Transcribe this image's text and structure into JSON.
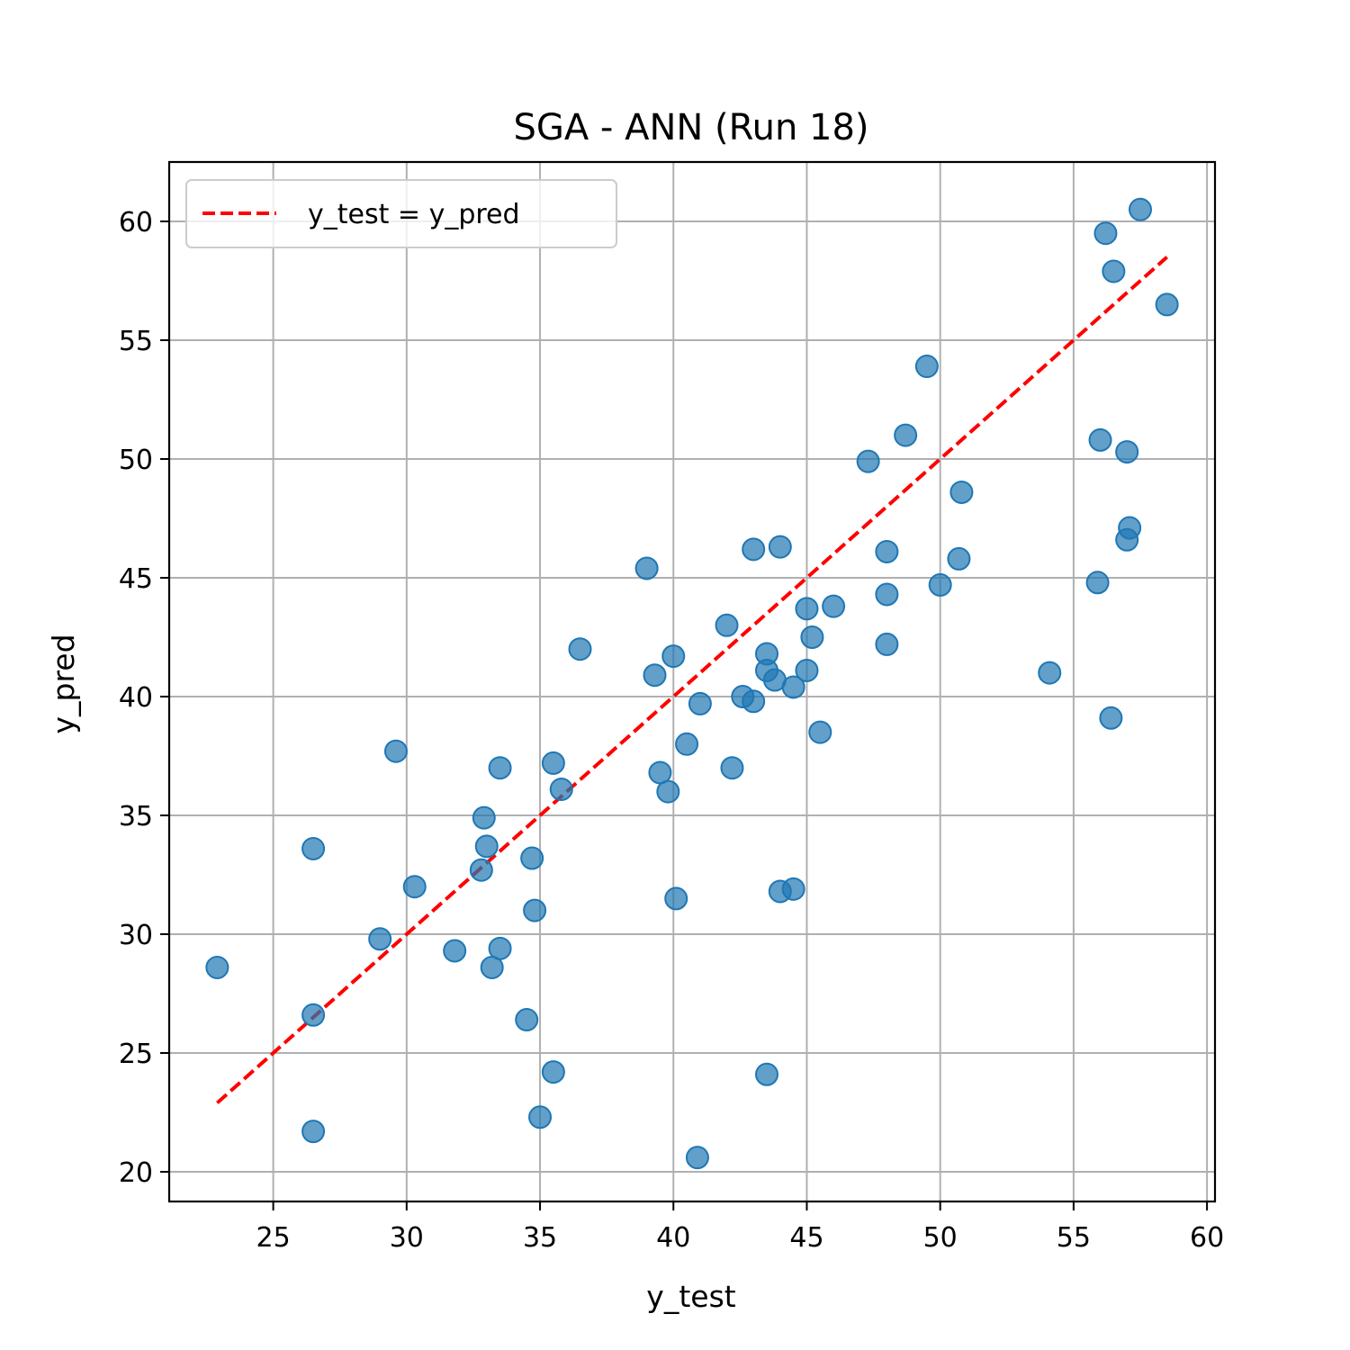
{
  "chart_data": {
    "type": "scatter",
    "title": "SGA - ANN (Run 18)",
    "xlabel": "y_test",
    "ylabel": "y_pred",
    "xlim": [
      21.1,
      60.3
    ],
    "ylim": [
      18.75,
      62.5
    ],
    "xticks": [
      25,
      30,
      35,
      40,
      45,
      50,
      55,
      60
    ],
    "yticks": [
      20,
      25,
      30,
      35,
      40,
      45,
      50,
      55,
      60
    ],
    "grid": true,
    "legend_position": "upper-left",
    "colors": {
      "points": "#1f77b4",
      "reference_line": "#ff0000"
    },
    "reference_line": {
      "name": "y_test = y_pred",
      "x": [
        22.9,
        58.5
      ],
      "y": [
        22.9,
        58.5
      ]
    },
    "points": [
      [
        22.9,
        28.6
      ],
      [
        26.5,
        33.6
      ],
      [
        26.5,
        26.6
      ],
      [
        26.5,
        21.7
      ],
      [
        29.0,
        29.8
      ],
      [
        29.6,
        37.7
      ],
      [
        30.3,
        32.0
      ],
      [
        31.8,
        29.3
      ],
      [
        32.8,
        32.7
      ],
      [
        32.9,
        34.9
      ],
      [
        33.0,
        33.7
      ],
      [
        33.2,
        28.6
      ],
      [
        33.5,
        37.0
      ],
      [
        33.5,
        29.4
      ],
      [
        34.5,
        26.4
      ],
      [
        34.7,
        33.2
      ],
      [
        34.8,
        31.0
      ],
      [
        35.0,
        22.3
      ],
      [
        35.5,
        37.2
      ],
      [
        35.5,
        24.2
      ],
      [
        35.8,
        36.1
      ],
      [
        36.5,
        42.0
      ],
      [
        39.0,
        45.4
      ],
      [
        39.3,
        40.9
      ],
      [
        39.5,
        36.8
      ],
      [
        39.8,
        36.0
      ],
      [
        40.0,
        41.7
      ],
      [
        40.1,
        31.5
      ],
      [
        40.5,
        38.0
      ],
      [
        40.9,
        20.6
      ],
      [
        41.0,
        39.7
      ],
      [
        42.0,
        43.0
      ],
      [
        42.2,
        37.0
      ],
      [
        42.6,
        40.0
      ],
      [
        43.0,
        46.2
      ],
      [
        43.0,
        39.8
      ],
      [
        43.5,
        41.8
      ],
      [
        43.5,
        41.1
      ],
      [
        43.5,
        24.1
      ],
      [
        43.8,
        40.7
      ],
      [
        44.0,
        46.3
      ],
      [
        44.0,
        31.8
      ],
      [
        44.5,
        40.4
      ],
      [
        44.5,
        31.9
      ],
      [
        45.0,
        43.7
      ],
      [
        45.0,
        41.1
      ],
      [
        45.2,
        42.5
      ],
      [
        45.5,
        38.5
      ],
      [
        46.0,
        43.8
      ],
      [
        47.3,
        49.9
      ],
      [
        48.0,
        46.1
      ],
      [
        48.0,
        44.3
      ],
      [
        48.0,
        42.2
      ],
      [
        48.7,
        51.0
      ],
      [
        49.5,
        53.9
      ],
      [
        50.0,
        44.7
      ],
      [
        50.7,
        45.8
      ],
      [
        50.8,
        48.6
      ],
      [
        54.1,
        41.0
      ],
      [
        55.9,
        44.8
      ],
      [
        56.0,
        50.8
      ],
      [
        56.2,
        59.5
      ],
      [
        56.4,
        39.1
      ],
      [
        56.5,
        57.9
      ],
      [
        57.0,
        50.3
      ],
      [
        57.0,
        46.6
      ],
      [
        57.1,
        47.1
      ],
      [
        57.5,
        60.5
      ],
      [
        58.5,
        56.5
      ]
    ]
  }
}
